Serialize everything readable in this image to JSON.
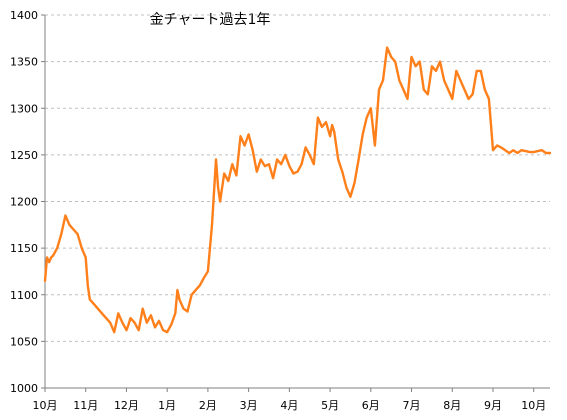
{
  "chart_data": {
    "type": "line",
    "title": "金チャート過去1年",
    "xlabel": "",
    "ylabel": "",
    "ylim": [
      1000,
      1400
    ],
    "yticks": [
      1000,
      1050,
      1100,
      1150,
      1200,
      1250,
      1300,
      1350,
      1400
    ],
    "categories": [
      "10月",
      "11月",
      "12月",
      "1月",
      "2月",
      "3月",
      "4月",
      "5月",
      "6月",
      "7月",
      "8月",
      "9月",
      "10月"
    ],
    "grid": true,
    "legend": "none",
    "color": "#ff7f1a",
    "series": [
      {
        "x": [
          0.0,
          0.05,
          0.1,
          0.15,
          0.2,
          0.3,
          0.4,
          0.5,
          0.6,
          0.7,
          0.8,
          0.9,
          1.0,
          1.05,
          1.1,
          1.2,
          1.3,
          1.4,
          1.5,
          1.6,
          1.7,
          1.8,
          1.9,
          2.0,
          2.05,
          2.1,
          2.2,
          2.3,
          2.4,
          2.5,
          2.6,
          2.7,
          2.8,
          2.9,
          3.0,
          3.1,
          3.2,
          3.25,
          3.3,
          3.4,
          3.5,
          3.6,
          3.7,
          3.8,
          3.9,
          4.0,
          4.1,
          4.2,
          4.25,
          4.3,
          4.4,
          4.5,
          4.6,
          4.7,
          4.8,
          4.9,
          5.0,
          5.1,
          5.2,
          5.3,
          5.4,
          5.5,
          5.6,
          5.7,
          5.8,
          5.9,
          6.0,
          6.1,
          6.2,
          6.3,
          6.4,
          6.5,
          6.6,
          6.7,
          6.8,
          6.9,
          7.0,
          7.05,
          7.1,
          7.2,
          7.3,
          7.4,
          7.5,
          7.6,
          7.7,
          7.8,
          7.9,
          8.0,
          8.1,
          8.2,
          8.3,
          8.4,
          8.5,
          8.6,
          8.7,
          8.8,
          8.9,
          9.0,
          9.1,
          9.2,
          9.3,
          9.4,
          9.5,
          9.6,
          9.7,
          9.8,
          9.9,
          10.0,
          10.1,
          10.2,
          10.3,
          10.4,
          10.5,
          10.6,
          10.7,
          10.8,
          10.9,
          11.0,
          11.1,
          11.2,
          11.3,
          11.4,
          11.5,
          11.6,
          11.7,
          11.8,
          11.9,
          12.0,
          12.1,
          12.2,
          12.3,
          12.4
        ],
        "values": [
          1115,
          1140,
          1135,
          1140,
          1142,
          1150,
          1165,
          1185,
          1175,
          1170,
          1165,
          1150,
          1140,
          1110,
          1095,
          1090,
          1085,
          1080,
          1075,
          1070,
          1060,
          1080,
          1070,
          1062,
          1068,
          1075,
          1070,
          1062,
          1085,
          1070,
          1078,
          1065,
          1072,
          1062,
          1060,
          1068,
          1080,
          1105,
          1095,
          1085,
          1082,
          1100,
          1105,
          1110,
          1118,
          1125,
          1175,
          1245,
          1215,
          1200,
          1230,
          1222,
          1240,
          1228,
          1270,
          1260,
          1272,
          1255,
          1232,
          1245,
          1238,
          1240,
          1225,
          1245,
          1240,
          1250,
          1238,
          1230,
          1232,
          1240,
          1258,
          1250,
          1240,
          1290,
          1280,
          1285,
          1270,
          1282,
          1275,
          1245,
          1232,
          1215,
          1205,
          1220,
          1245,
          1272,
          1290,
          1300,
          1260,
          1320,
          1330,
          1365,
          1355,
          1350,
          1330,
          1320,
          1310,
          1355,
          1345,
          1350,
          1320,
          1315,
          1345,
          1340,
          1350,
          1330,
          1320,
          1310,
          1340,
          1330,
          1320,
          1310,
          1315,
          1340,
          1340,
          1320,
          1310,
          1255,
          1260,
          1258,
          1255,
          1252,
          1255,
          1252,
          1255,
          1254,
          1253,
          1253,
          1254,
          1255,
          1252,
          1252
        ]
      }
    ]
  }
}
